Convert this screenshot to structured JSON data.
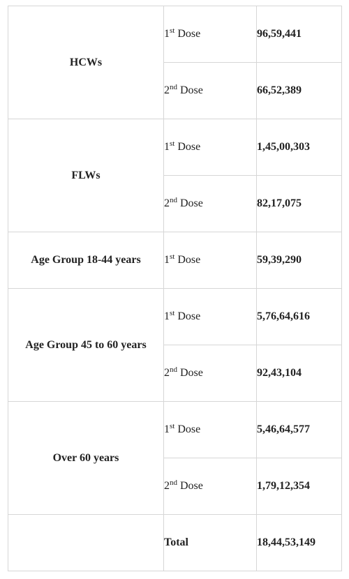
{
  "rows": [
    {
      "group": "HCWs",
      "dose_num": "1",
      "dose_suffix": "st",
      "dose_word": " Dose",
      "count": "96,59,441"
    },
    {
      "dose_num": "2",
      "dose_suffix": "nd",
      "dose_word": " Dose",
      "count": "66,52,389"
    },
    {
      "group": "FLWs",
      "dose_num": "1",
      "dose_suffix": "st",
      "dose_word": " Dose",
      "count": "1,45,00,303"
    },
    {
      "dose_num": "2",
      "dose_suffix": "nd",
      "dose_word": " Dose",
      "count": "82,17,075"
    },
    {
      "group": "Age Group 18-44 years",
      "dose_num": "1",
      "dose_suffix": "st",
      "dose_word": " Dose",
      "count": "59,39,290"
    },
    {
      "group": "Age Group 45 to 60 years",
      "dose_num": "1",
      "dose_suffix": "st",
      "dose_word": " Dose",
      "count": "5,76,64,616"
    },
    {
      "dose_num": "2",
      "dose_suffix": "nd",
      "dose_word": " Dose",
      "count": "92,43,104"
    },
    {
      "group": "Over 60 years",
      "dose_num": "1",
      "dose_suffix": "st",
      "dose_word": " Dose",
      "count": "5,46,64,577"
    },
    {
      "dose_num": "2",
      "dose_suffix": "nd",
      "dose_word": " Dose",
      "count": "1,79,12,354"
    }
  ],
  "total": {
    "label": "Total",
    "count": "18,44,53,149"
  }
}
